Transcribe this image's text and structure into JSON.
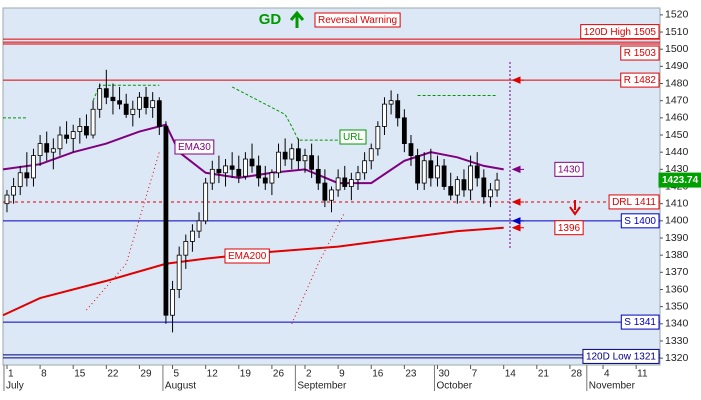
{
  "chart_data": {
    "type": "candlestick",
    "title": "GD",
    "annotation": "Reversal Warning",
    "x": [
      0,
      1,
      2,
      3,
      4,
      5,
      6,
      7,
      8,
      9,
      10,
      11,
      12,
      13,
      14,
      15,
      16,
      17,
      18,
      19,
      20,
      21,
      22,
      23,
      24,
      25,
      26,
      27,
      28,
      29,
      30,
      31,
      32,
      33,
      34,
      35,
      36,
      37,
      38,
      39,
      40,
      41,
      42,
      43,
      44,
      45,
      46,
      47,
      48,
      49,
      50,
      51,
      52,
      53,
      54,
      55,
      56,
      57,
      58,
      59,
      60,
      61,
      62,
      63,
      64,
      65,
      66,
      67,
      68,
      69,
      70,
      71,
      72,
      73,
      74
    ],
    "open": [
      1410,
      1415,
      1420,
      1428,
      1425,
      1438,
      1445,
      1440,
      1442,
      1450,
      1448,
      1452,
      1455,
      1450,
      1465,
      1477,
      1472,
      1470,
      1468,
      1462,
      1465,
      1472,
      1466,
      1470,
      1455,
      1345,
      1360,
      1380,
      1388,
      1394,
      1400,
      1422,
      1430,
      1428,
      1432,
      1430,
      1426,
      1436,
      1432,
      1425,
      1422,
      1428,
      1440,
      1436,
      1442,
      1435,
      1438,
      1430,
      1422,
      1412,
      1418,
      1425,
      1420,
      1424,
      1428,
      1435,
      1442,
      1455,
      1468,
      1470,
      1460,
      1445,
      1438,
      1422,
      1435,
      1425,
      1432,
      1420,
      1415,
      1424,
      1418,
      1432,
      1425,
      1414,
      1418
    ],
    "high": [
      1418,
      1425,
      1432,
      1440,
      1442,
      1450,
      1452,
      1448,
      1455,
      1458,
      1456,
      1460,
      1462,
      1470,
      1480,
      1488,
      1480,
      1478,
      1474,
      1470,
      1475,
      1478,
      1475,
      1472,
      1458,
      1365,
      1385,
      1392,
      1398,
      1405,
      1425,
      1435,
      1438,
      1436,
      1440,
      1438,
      1440,
      1445,
      1438,
      1432,
      1430,
      1445,
      1448,
      1445,
      1448,
      1442,
      1445,
      1438,
      1430,
      1420,
      1430,
      1432,
      1428,
      1432,
      1440,
      1445,
      1458,
      1472,
      1476,
      1474,
      1465,
      1450,
      1442,
      1440,
      1442,
      1438,
      1436,
      1428,
      1426,
      1430,
      1438,
      1440,
      1430,
      1422,
      1428
    ],
    "low": [
      1405,
      1410,
      1415,
      1420,
      1420,
      1432,
      1435,
      1430,
      1438,
      1445,
      1440,
      1445,
      1448,
      1448,
      1460,
      1468,
      1462,
      1465,
      1460,
      1455,
      1460,
      1462,
      1460,
      1450,
      1340,
      1335,
      1355,
      1372,
      1382,
      1390,
      1398,
      1418,
      1422,
      1420,
      1425,
      1422,
      1424,
      1428,
      1420,
      1418,
      1415,
      1425,
      1432,
      1430,
      1430,
      1428,
      1425,
      1418,
      1408,
      1405,
      1414,
      1418,
      1412,
      1418,
      1424,
      1430,
      1438,
      1450,
      1462,
      1455,
      1440,
      1432,
      1418,
      1418,
      1420,
      1420,
      1418,
      1412,
      1410,
      1414,
      1412,
      1420,
      1410,
      1408,
      1414
    ],
    "close": [
      1415,
      1420,
      1428,
      1425,
      1438,
      1445,
      1440,
      1442,
      1450,
      1448,
      1452,
      1455,
      1450,
      1465,
      1477,
      1472,
      1470,
      1468,
      1462,
      1465,
      1472,
      1466,
      1470,
      1455,
      1345,
      1360,
      1380,
      1388,
      1394,
      1400,
      1422,
      1430,
      1428,
      1432,
      1430,
      1426,
      1436,
      1432,
      1425,
      1422,
      1428,
      1440,
      1436,
      1442,
      1435,
      1438,
      1430,
      1422,
      1412,
      1418,
      1425,
      1420,
      1424,
      1428,
      1435,
      1442,
      1455,
      1468,
      1470,
      1460,
      1445,
      1438,
      1422,
      1435,
      1425,
      1432,
      1420,
      1415,
      1424,
      1418,
      1432,
      1425,
      1414,
      1418,
      1423.74
    ],
    "up_color": "#ffffff",
    "down_color": "#000000",
    "xlim": [
      -0.6,
      98.6
    ],
    "xticks": [
      {
        "value": 0,
        "label": "1"
      },
      {
        "value": 5,
        "label": "8"
      },
      {
        "value": 10,
        "label": "15"
      },
      {
        "value": 15,
        "label": "22"
      },
      {
        "value": 20,
        "label": "29"
      },
      {
        "value": 25,
        "label": "5"
      },
      {
        "value": 30,
        "label": "12"
      },
      {
        "value": 35,
        "label": "19"
      },
      {
        "value": 40,
        "label": "26"
      },
      {
        "value": 45,
        "label": "2"
      },
      {
        "value": 50,
        "label": "9"
      },
      {
        "value": 55,
        "label": "16"
      },
      {
        "value": 60,
        "label": "23"
      },
      {
        "value": 65,
        "label": "30"
      },
      {
        "value": 70,
        "label": "7"
      },
      {
        "value": 75,
        "label": "14"
      },
      {
        "value": 80,
        "label": "21"
      },
      {
        "value": 85,
        "label": "28"
      },
      {
        "value": 90,
        "label": "4"
      },
      {
        "value": 95,
        "label": "11"
      }
    ],
    "months": [
      {
        "value": 0,
        "label": "July"
      },
      {
        "value": 24,
        "label": "August"
      },
      {
        "value": 44,
        "label": "September"
      },
      {
        "value": 65,
        "label": "October"
      },
      {
        "value": 88,
        "label": "November"
      }
    ],
    "ylim": [
      1316,
      1524
    ],
    "yticks": [
      1320,
      1330,
      1340,
      1350,
      1360,
      1370,
      1380,
      1390,
      1400,
      1410,
      1420,
      1430,
      1440,
      1450,
      1460,
      1470,
      1480,
      1490,
      1500,
      1510,
      1520
    ],
    "lines": [
      {
        "name": "EMA30",
        "color": "#800080",
        "width": 2,
        "x": [
          -0.6,
          5,
          10,
          15,
          20,
          24,
          26,
          30,
          35,
          40,
          45,
          50,
          55,
          60,
          64,
          68,
          72,
          75
        ],
        "values": [
          1430,
          1433,
          1440,
          1445,
          1452,
          1456,
          1440,
          1428,
          1425,
          1428,
          1430,
          1422,
          1422,
          1435,
          1440,
          1437,
          1432,
          1430
        ]
      },
      {
        "name": "EMA200",
        "color": "#e00000",
        "width": 2,
        "x": [
          -0.6,
          5,
          15,
          24,
          30,
          40,
          50,
          60,
          68,
          75
        ],
        "values": [
          1345,
          1355,
          1365,
          1375,
          1378,
          1382,
          1385,
          1390,
          1394,
          1396
        ]
      },
      {
        "name": "URL",
        "color": "#009900",
        "width": 1,
        "dash": "3,2",
        "x": [
          -0.6,
          3,
          3.5,
          13,
          14,
          23,
          24,
          34,
          38,
          42,
          43,
          44,
          52,
          53,
          62,
          74
        ],
        "values": [
          1460,
          1460,
          null,
          1470,
          1479,
          1479,
          null,
          1478,
          1470,
          1462,
          1455,
          1447,
          1447,
          null,
          1473,
          1473
        ]
      },
      {
        "color": "#e00000",
        "width": 1,
        "dash": "1,3",
        "x": [
          12,
          18,
          23,
          23.5,
          43,
          47,
          51
        ],
        "values": [
          1348,
          1375,
          1440,
          null,
          1340,
          1375,
          1405
        ]
      }
    ],
    "levels": [
      {
        "label": "120D High 1505",
        "value": 1505,
        "color": "#e00000",
        "style": "double"
      },
      {
        "label": "R 1503",
        "value": 1503,
        "color": "#e00000",
        "style": "solid"
      },
      {
        "label": "R 1482",
        "value": 1482,
        "color": "#e00000",
        "style": "solid",
        "arrow": true
      },
      {
        "label": "1430",
        "value": 1430,
        "color": "#800080",
        "style": "none",
        "arrow": true
      },
      {
        "label": "DRL 1411",
        "value": 1411,
        "color": "#e00000",
        "style": "dashed",
        "arrow": true
      },
      {
        "label": "S 1400",
        "value": 1400,
        "color": "#0000c0",
        "style": "solid",
        "arrow": true
      },
      {
        "label": "1396",
        "value": 1396,
        "color": "#e00000",
        "style": "none",
        "arrow": true
      },
      {
        "label": "S 1341",
        "value": 1341,
        "color": "#0000c0",
        "style": "solid"
      },
      {
        "label": "120D Low 1321",
        "value": 1321,
        "color": "#000080",
        "style": "double"
      }
    ],
    "last_color": "#00a000"
  }
}
